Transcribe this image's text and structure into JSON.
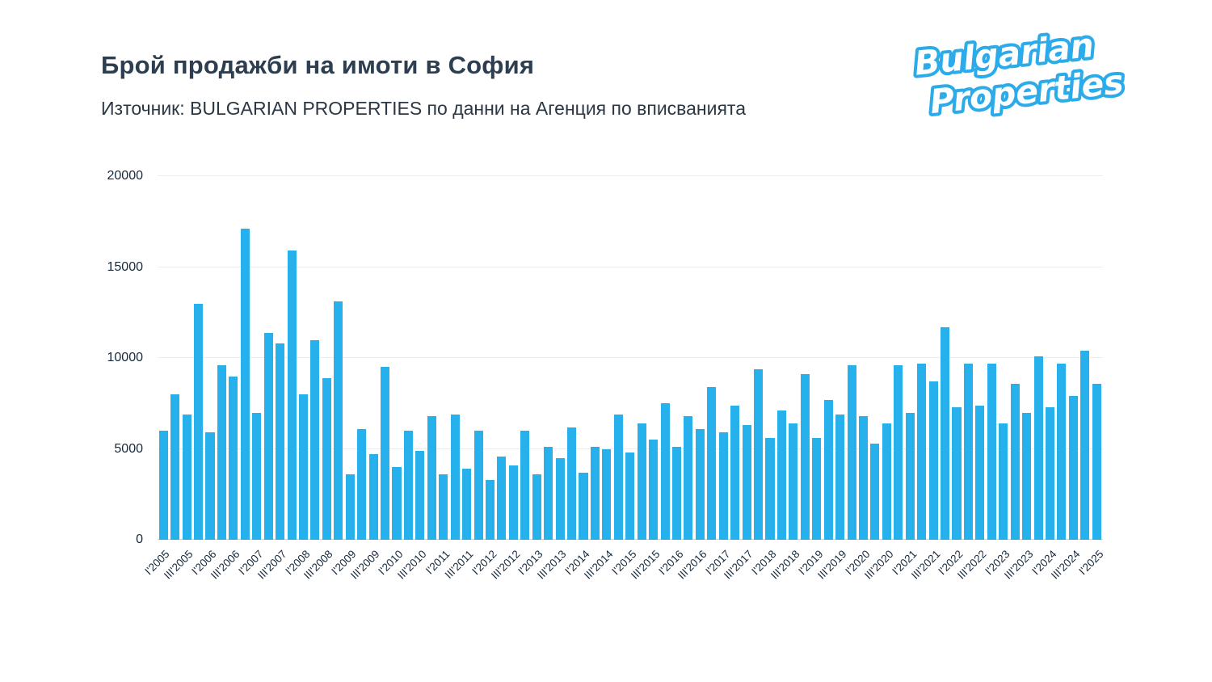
{
  "page": {
    "title": "Брой продажби на имоти в София",
    "subtitle": "Източник: BULGARIAN PROPERTIES по данни на Агенция по вписванията"
  },
  "logo": {
    "line1": "Bulgarian",
    "line2": "Properties",
    "brand_blue": "#2babe9",
    "text_color": "#ffffff"
  },
  "chart_data": {
    "type": "bar",
    "title": "Брой продажби на имоти в София",
    "xlabel": "",
    "ylabel": "",
    "ylim": [
      0,
      20000
    ],
    "yticks": [
      0,
      5000,
      10000,
      15000,
      20000
    ],
    "grid": "horizontal",
    "legend": "none",
    "bar_color": "#27b1ec",
    "x_tick_every": 2,
    "categories": [
      "I'2005",
      "II'2005",
      "III'2005",
      "IV'2005",
      "I'2006",
      "II'2006",
      "III'2006",
      "IV'2006",
      "I'2007",
      "II'2007",
      "III'2007",
      "IV'2007",
      "I'2008",
      "II'2008",
      "III'2008",
      "IV'2008",
      "I'2009",
      "II'2009",
      "III'2009",
      "IV'2009",
      "I'2010",
      "II'2010",
      "III'2010",
      "IV'2010",
      "I'2011",
      "II'2011",
      "III'2011",
      "IV'2011",
      "I'2012",
      "II'2012",
      "III'2012",
      "IV'2012",
      "I'2013",
      "II'2013",
      "III'2013",
      "IV'2013",
      "I'2014",
      "II'2014",
      "III'2014",
      "IV'2014",
      "I'2015",
      "II'2015",
      "III'2015",
      "IV'2015",
      "I'2016",
      "II'2016",
      "III'2016",
      "IV'2016",
      "I'2017",
      "II'2017",
      "III'2017",
      "IV'2017",
      "I'2018",
      "II'2018",
      "III'2018",
      "IV'2018",
      "I'2019",
      "II'2019",
      "III'2019",
      "IV'2019",
      "I'2020",
      "II'2020",
      "III'2020",
      "IV'2020",
      "I'2021",
      "II'2021",
      "III'2021",
      "IV'2021",
      "I'2022",
      "II'2022",
      "III'2022",
      "IV'2022",
      "I'2023",
      "II'2023",
      "III'2023",
      "IV'2023",
      "I'2024",
      "II'2024",
      "III'2024",
      "IV'2024",
      "I'2025"
    ],
    "values": [
      6000,
      8000,
      6900,
      13000,
      5900,
      9600,
      9000,
      17100,
      7000,
      11400,
      10800,
      15900,
      8000,
      11000,
      8900,
      13100,
      3600,
      6100,
      4700,
      9500,
      4000,
      6000,
      4900,
      6800,
      3600,
      6900,
      3900,
      6000,
      3300,
      4600,
      4100,
      6000,
      3600,
      5100,
      4500,
      6200,
      3700,
      5100,
      5000,
      6900,
      4800,
      6400,
      5500,
      7500,
      5100,
      6800,
      6100,
      8400,
      5900,
      7400,
      6300,
      9400,
      5600,
      7100,
      6400,
      9100,
      5600,
      7700,
      6900,
      9600,
      6800,
      5300,
      6400,
      9600,
      7000,
      9700,
      8700,
      11700,
      7300,
      9700,
      7400,
      9700,
      6400,
      8600,
      7000,
      10100,
      7300,
      9700,
      7900,
      10400,
      8600
    ]
  }
}
